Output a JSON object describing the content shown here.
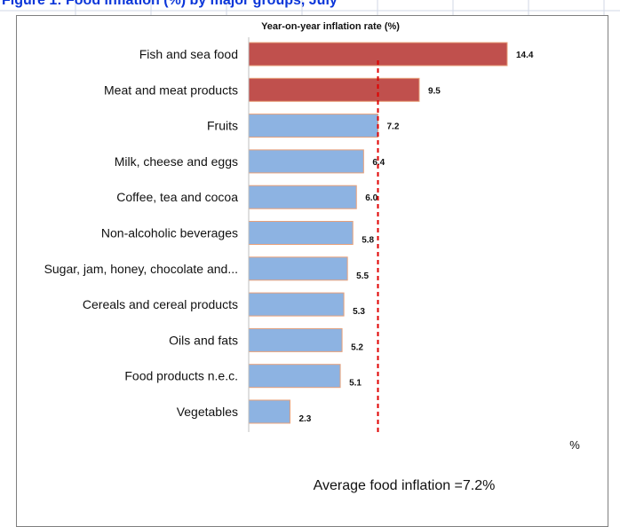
{
  "chart_data": {
    "type": "bar",
    "orientation": "horizontal",
    "title": "Year-on-year inflation rate (%)",
    "categories": [
      "Fish and sea food",
      "Meat and meat products",
      "Fruits",
      "Milk, cheese and eggs",
      "Coffee, tea and cocoa",
      "Non-alcoholic beverages",
      "Sugar, jam, honey, chocolate and...",
      "Cereals and cereal products",
      "Oils and fats",
      "Food products n.e.c.",
      "Vegetables"
    ],
    "values": [
      14.4,
      9.5,
      7.2,
      6.4,
      6.0,
      5.8,
      5.5,
      5.3,
      5.2,
      5.1,
      2.3
    ],
    "value_labels": [
      "14.4",
      "9.5",
      "7.2",
      "6.4",
      "6.0",
      "5.8",
      "5.5",
      "5.3",
      "5.2",
      "5.1",
      "2.3"
    ],
    "xlabel": "%",
    "reference_line": {
      "value": 7.2,
      "style": "dashed",
      "color": "#e00000"
    },
    "annotation": "Average food inflation =7.2%",
    "colors": {
      "above_average": "#c0504d",
      "below_average": "#8db3e2",
      "bar_edge": "#e8a07a"
    },
    "xlim": [
      0,
      15
    ],
    "grid": false,
    "legend": "none"
  },
  "header_strip_text": "Figure 1: Food inflation (%) by major groups, July"
}
